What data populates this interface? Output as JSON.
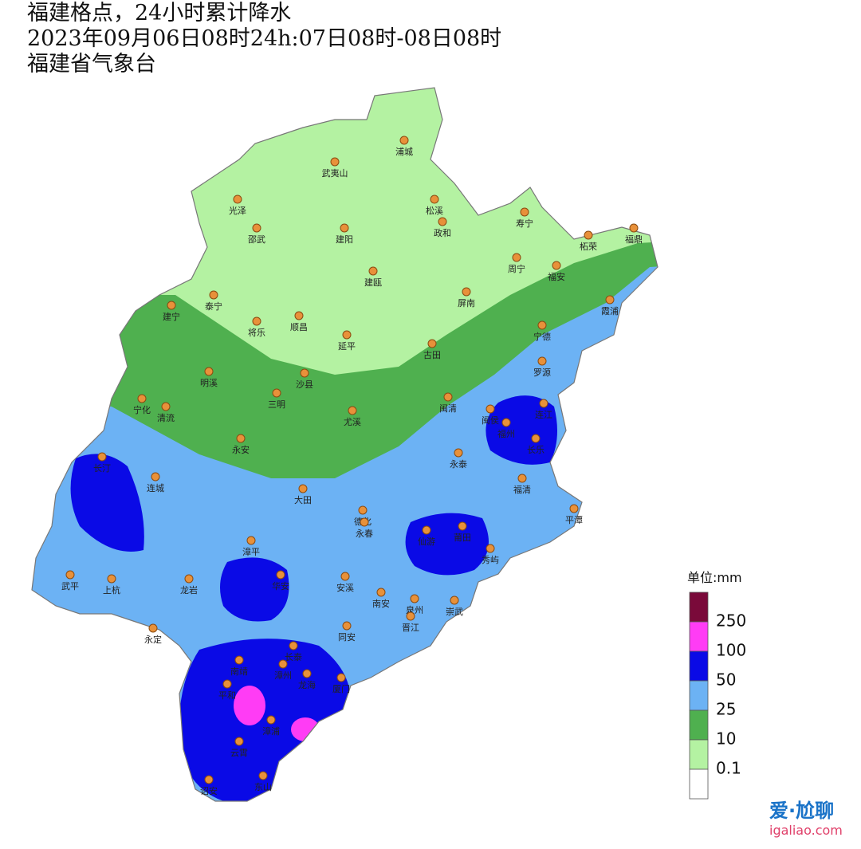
{
  "header": {
    "lines": [
      "福建格点，24小时累计降水",
      "2023年09月06日08时24h:07日08时-08日08时",
      "福建省气象台"
    ]
  },
  "cities": [
    "浦城",
    "武夷山",
    "光泽",
    "松溪",
    "寿宁",
    "邵武",
    "建阳",
    "政和",
    "福鼎",
    "柘荣",
    "周宁",
    "福安",
    "建瓯",
    "泰宁",
    "屏南",
    "霞浦",
    "建宁",
    "将乐",
    "顺昌",
    "延平",
    "古田",
    "宁德",
    "罗源",
    "明溪",
    "沙县",
    "三明",
    "闽清",
    "宁化",
    "清流",
    "尤溪",
    "连江",
    "闽侯",
    "福州",
    "长乐",
    "永安",
    "长汀",
    "永泰",
    "连城",
    "福清",
    "大田",
    "平潭",
    "德化",
    "永春",
    "仙游",
    "莆田",
    "秀屿",
    "漳平",
    "武平",
    "上杭",
    "龙岩",
    "华安",
    "安溪",
    "南安",
    "泉州",
    "崇武",
    "晋江",
    "永定",
    "同安",
    "长泰",
    "南靖",
    "漳州",
    "龙海",
    "厦门",
    "平和",
    "漳浦",
    "云霄",
    "诏安",
    "东山"
  ],
  "legend": {
    "unit": "单位:mm",
    "levels": [
      {
        "label": "250",
        "color": "#7a0a3a"
      },
      {
        "label": "100",
        "color": "#ff3cf5"
      },
      {
        "label": "50",
        "color": "#0a0ae6"
      },
      {
        "label": "25",
        "color": "#6cb2f4"
      },
      {
        "label": "10",
        "color": "#4fb04f"
      },
      {
        "label": "0.1",
        "color": "#b4f2a2"
      }
    ],
    "floor_color": "#ffffff"
  },
  "watermark": {
    "brand": "爱·尬聊",
    "url": "igaliao.com"
  }
}
